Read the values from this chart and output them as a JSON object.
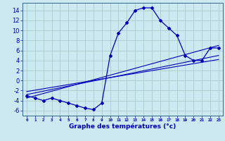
{
  "xlabel": "Graphe des températures (°c)",
  "background_color": "#cce8f0",
  "grid_color": "#aacccc",
  "line_color": "#0000bb",
  "hours": [
    0,
    1,
    2,
    3,
    4,
    5,
    6,
    7,
    8,
    9,
    10,
    11,
    12,
    13,
    14,
    15,
    16,
    17,
    18,
    19,
    20,
    21,
    22,
    23
  ],
  "temps": [
    -3.0,
    -3.5,
    -4.0,
    -3.5,
    -4.0,
    -4.5,
    -5.0,
    -5.5,
    -5.8,
    -4.5,
    5.0,
    9.5,
    11.5,
    14.0,
    14.5,
    14.5,
    12.0,
    10.5,
    9.0,
    5.0,
    4.0,
    4.0,
    6.5,
    6.5
  ],
  "trend1_x": [
    0,
    23
  ],
  "trend1_y": [
    -3.5,
    7.0
  ],
  "trend2_x": [
    0,
    23
  ],
  "trend2_y": [
    -2.8,
    5.0
  ],
  "trend3_x": [
    0,
    23
  ],
  "trend3_y": [
    -2.2,
    4.2
  ],
  "ylim": [
    -7,
    15.5
  ],
  "xlim": [
    -0.5,
    23.5
  ],
  "yticks": [
    -6,
    -4,
    -2,
    0,
    2,
    4,
    6,
    8,
    10,
    12,
    14
  ],
  "xticks": [
    0,
    1,
    2,
    3,
    4,
    5,
    6,
    7,
    8,
    9,
    10,
    11,
    12,
    13,
    14,
    15,
    16,
    17,
    18,
    19,
    20,
    21,
    22,
    23
  ],
  "ylabel_fontsize": 5.5,
  "xlabel_fontsize": 6.5,
  "ytick_fontsize": 6.0,
  "xtick_fontsize": 4.2
}
